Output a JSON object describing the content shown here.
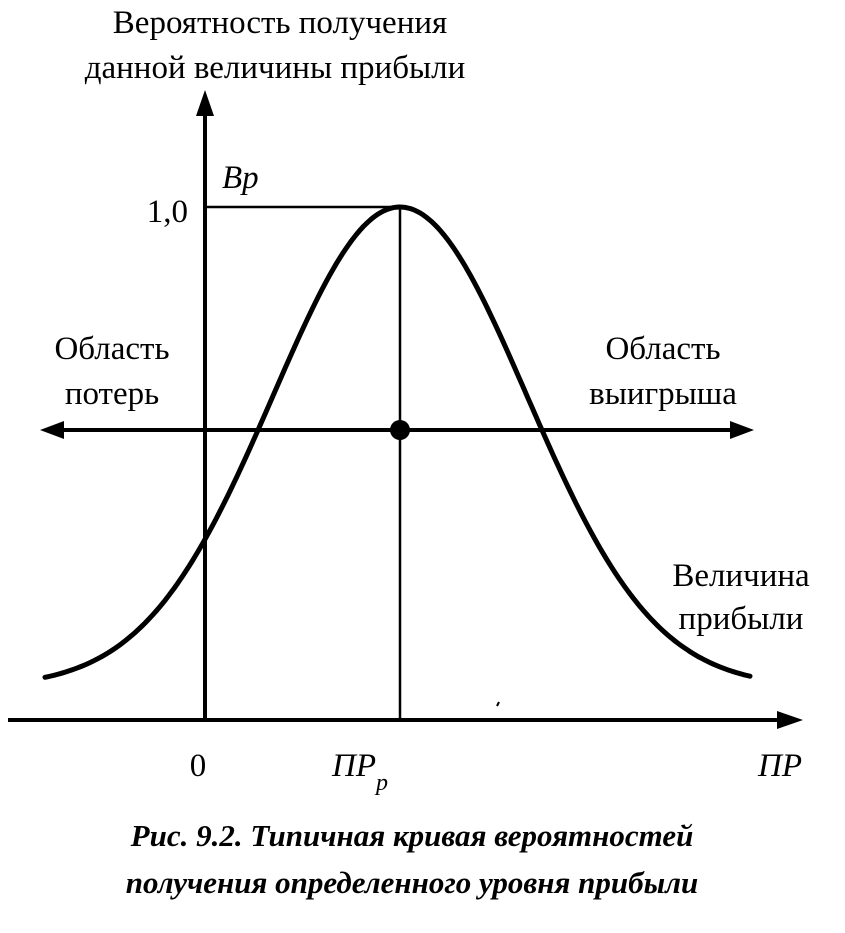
{
  "y_axis_label": {
    "line1": "Вероятность получения",
    "line2": "данной величины прибыли"
  },
  "peak_label": "Bp",
  "y_tick": "1,0",
  "loss_area": {
    "line1": "Область",
    "line2": "потерь"
  },
  "win_area": {
    "line1": "Область",
    "line2": "выигрыша"
  },
  "profit_label": {
    "line1": "Величина",
    "line2": "прибыли"
  },
  "x_ticks": {
    "zero": "0",
    "pr_main": "ПР",
    "pr_sub": "р",
    "axis_end": "ПР"
  },
  "caption": {
    "line1": "Рис. 9.2. Типичная кривая вероятностей",
    "line2": "получения определенного уровня прибыли"
  },
  "colors": {
    "ink": "#000000",
    "paper": "#ffffff"
  }
}
